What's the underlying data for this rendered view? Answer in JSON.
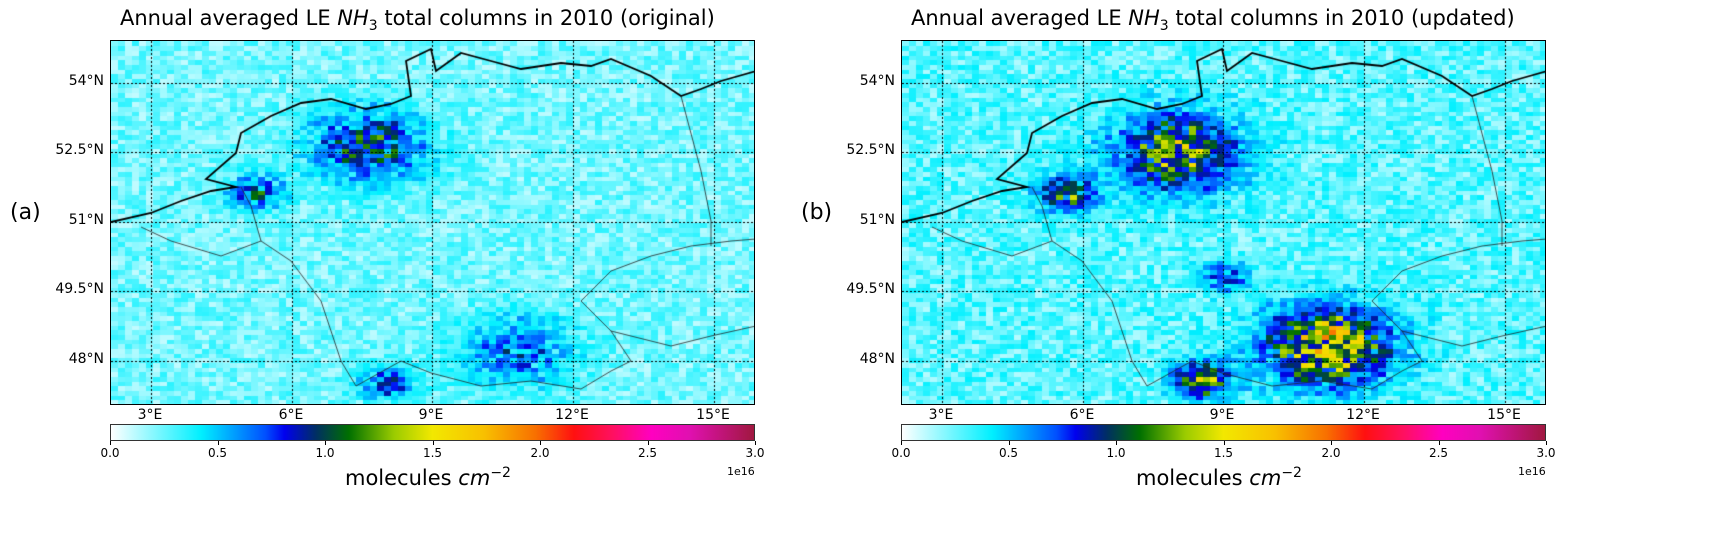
{
  "panels": [
    {
      "label": "(a)",
      "title_prefix": "Annual averaged LE ",
      "title_species": "NH",
      "title_sub": "3",
      "title_suffix": " total columns in 2010 (original)"
    },
    {
      "label": "(b)",
      "title_prefix": "Annual averaged LE ",
      "title_species": "NH",
      "title_sub": "3",
      "title_suffix": " total columns in 2010 (updated)"
    }
  ],
  "lat_ticks": [
    "54°N",
    "52.5°N",
    "51°N",
    "49.5°N",
    "48°N"
  ],
  "lon_ticks": [
    "3°E",
    "6°E",
    "9°E",
    "12°E",
    "15°E"
  ],
  "colorbar": {
    "ticks": [
      "0.0",
      "0.5",
      "1.0",
      "1.5",
      "2.0",
      "2.5",
      "3.0"
    ],
    "exponent": "1e16",
    "label_prefix": "molecules ",
    "label_unit": "cm",
    "label_power": "−2"
  },
  "chart_data": [
    {
      "type": "heatmap",
      "title": "Annual averaged LE NH3 total columns in 2010 (original)",
      "xlim_lon": [
        2.15,
        15.9
      ],
      "ylim_lat": [
        47.1,
        54.9
      ],
      "value_range": [
        0,
        3.0
      ],
      "units": "1e16 molecules cm^-2",
      "background": 0.25,
      "hotspots": [
        {
          "lon": 7.6,
          "lat": 52.6,
          "value": 0.75,
          "spread": 1.2
        },
        {
          "lon": 5.2,
          "lat": 51.6,
          "value": 0.6,
          "spread": 0.6
        },
        {
          "lon": 10.8,
          "lat": 48.2,
          "value": 0.45,
          "spread": 1.2
        },
        {
          "lon": 8.0,
          "lat": 47.5,
          "value": 0.55,
          "spread": 0.6
        }
      ]
    },
    {
      "type": "heatmap",
      "title": "Annual averaged LE NH3 total columns in 2010 (updated)",
      "xlim_lon": [
        2.15,
        15.9
      ],
      "ylim_lat": [
        47.1,
        54.9
      ],
      "value_range": [
        0,
        3.0
      ],
      "units": "1e16 molecules cm^-2",
      "background": 0.3,
      "hotspots": [
        {
          "lon": 8.0,
          "lat": 52.5,
          "value": 0.95,
          "spread": 1.3
        },
        {
          "lon": 5.6,
          "lat": 51.6,
          "value": 0.8,
          "spread": 0.6
        },
        {
          "lon": 11.2,
          "lat": 48.3,
          "value": 1.25,
          "spread": 1.3
        },
        {
          "lon": 8.5,
          "lat": 47.6,
          "value": 1.0,
          "spread": 0.6
        },
        {
          "lon": 9.0,
          "lat": 49.8,
          "value": 0.5,
          "spread": 0.5
        }
      ]
    }
  ]
}
